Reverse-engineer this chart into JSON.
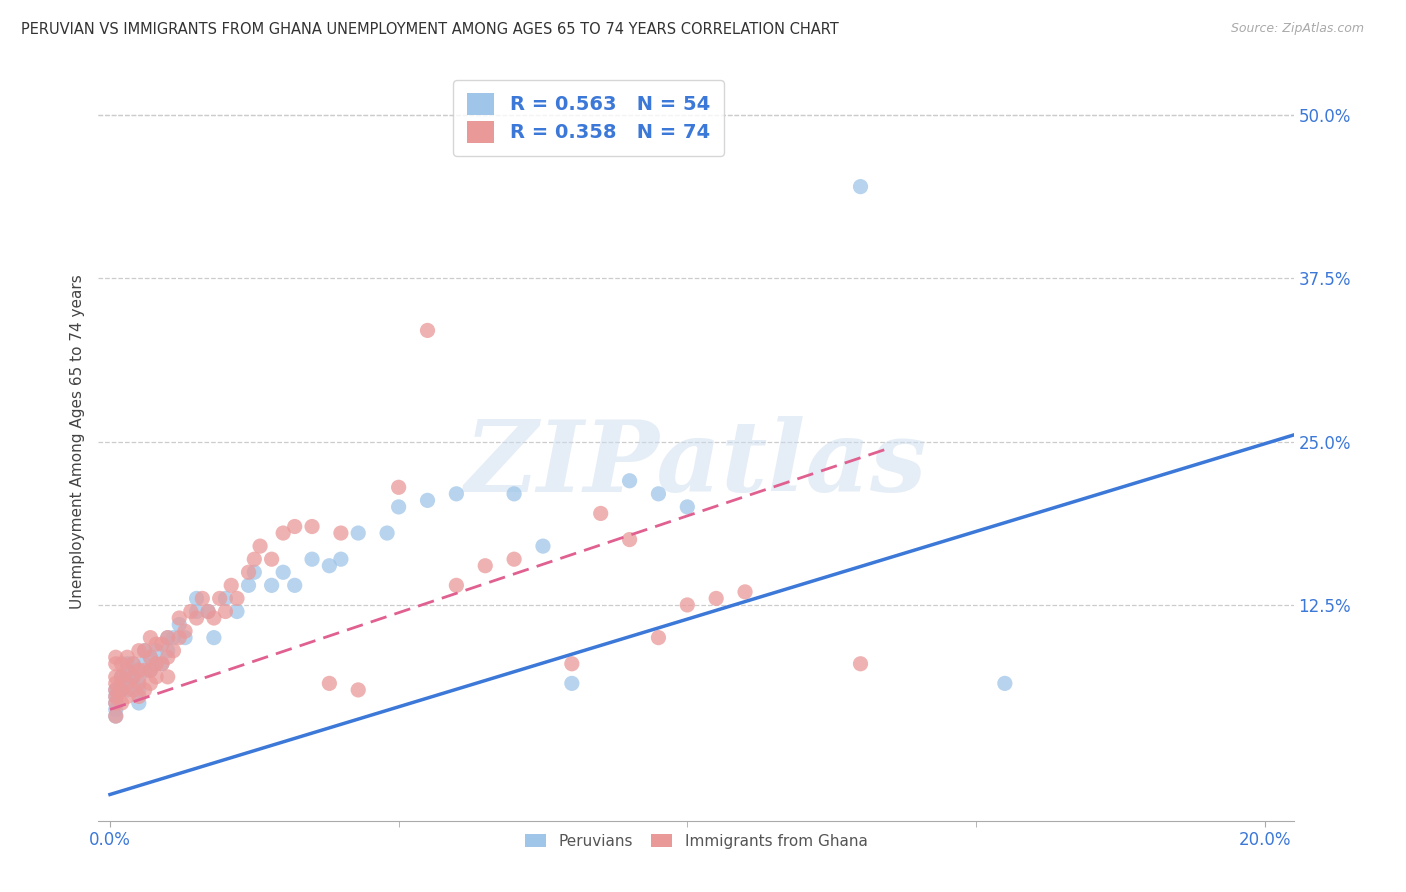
{
  "title": "PERUVIAN VS IMMIGRANTS FROM GHANA UNEMPLOYMENT AMONG AGES 65 TO 74 YEARS CORRELATION CHART",
  "source": "Source: ZipAtlas.com",
  "xlabel_ticks": [
    "0.0%",
    "20.0%"
  ],
  "xlabel_values": [
    0.0,
    0.2
  ],
  "ylabel": "Unemployment Among Ages 65 to 74 years",
  "ylabel_ticks": [
    "50.0%",
    "37.5%",
    "25.0%",
    "12.5%"
  ],
  "ylabel_values": [
    0.5,
    0.375,
    0.25,
    0.125
  ],
  "xlim": [
    -0.002,
    0.205
  ],
  "ylim": [
    -0.04,
    0.54
  ],
  "blue_color": "#9fc5e8",
  "pink_color": "#ea9999",
  "blue_line_color": "#3c78d8",
  "pink_line_color": "#e06090",
  "legend_label_blue": "Peruvians",
  "legend_label_pink": "Immigrants from Ghana",
  "watermark_text": "ZIPatlas",
  "blue_line_x": [
    0.0,
    0.205
  ],
  "blue_line_y": [
    -0.02,
    0.255
  ],
  "pink_line_x": [
    0.0,
    0.135
  ],
  "pink_line_y": [
    0.045,
    0.245
  ],
  "peru_x": [
    0.001,
    0.001,
    0.001,
    0.001,
    0.001,
    0.002,
    0.002,
    0.002,
    0.003,
    0.003,
    0.003,
    0.004,
    0.004,
    0.005,
    0.005,
    0.005,
    0.006,
    0.006,
    0.007,
    0.007,
    0.008,
    0.009,
    0.01,
    0.01,
    0.011,
    0.012,
    0.013,
    0.015,
    0.015,
    0.017,
    0.018,
    0.02,
    0.022,
    0.024,
    0.025,
    0.028,
    0.03,
    0.032,
    0.035,
    0.038,
    0.04,
    0.043,
    0.048,
    0.05,
    0.055,
    0.06,
    0.07,
    0.075,
    0.08,
    0.09,
    0.095,
    0.1,
    0.13,
    0.155
  ],
  "peru_y": [
    0.04,
    0.05,
    0.055,
    0.06,
    0.045,
    0.06,
    0.065,
    0.07,
    0.06,
    0.07,
    0.08,
    0.07,
    0.08,
    0.05,
    0.06,
    0.07,
    0.08,
    0.09,
    0.075,
    0.085,
    0.09,
    0.08,
    0.09,
    0.1,
    0.1,
    0.11,
    0.1,
    0.12,
    0.13,
    0.12,
    0.1,
    0.13,
    0.12,
    0.14,
    0.15,
    0.14,
    0.15,
    0.14,
    0.16,
    0.155,
    0.16,
    0.18,
    0.18,
    0.2,
    0.205,
    0.21,
    0.21,
    0.17,
    0.065,
    0.22,
    0.21,
    0.2,
    0.445,
    0.065
  ],
  "ghana_x": [
    0.001,
    0.001,
    0.001,
    0.001,
    0.001,
    0.001,
    0.001,
    0.001,
    0.002,
    0.002,
    0.002,
    0.002,
    0.003,
    0.003,
    0.003,
    0.003,
    0.004,
    0.004,
    0.004,
    0.005,
    0.005,
    0.005,
    0.005,
    0.006,
    0.006,
    0.006,
    0.007,
    0.007,
    0.007,
    0.007,
    0.008,
    0.008,
    0.008,
    0.009,
    0.009,
    0.01,
    0.01,
    0.01,
    0.011,
    0.012,
    0.012,
    0.013,
    0.014,
    0.015,
    0.016,
    0.017,
    0.018,
    0.019,
    0.02,
    0.021,
    0.022,
    0.024,
    0.025,
    0.026,
    0.028,
    0.03,
    0.032,
    0.035,
    0.038,
    0.04,
    0.043,
    0.05,
    0.055,
    0.06,
    0.065,
    0.07,
    0.08,
    0.085,
    0.09,
    0.095,
    0.1,
    0.105,
    0.11,
    0.13
  ],
  "ghana_y": [
    0.04,
    0.05,
    0.055,
    0.06,
    0.065,
    0.07,
    0.08,
    0.085,
    0.05,
    0.06,
    0.07,
    0.08,
    0.055,
    0.065,
    0.075,
    0.085,
    0.06,
    0.07,
    0.08,
    0.055,
    0.065,
    0.075,
    0.09,
    0.06,
    0.075,
    0.09,
    0.065,
    0.075,
    0.085,
    0.1,
    0.07,
    0.08,
    0.095,
    0.08,
    0.095,
    0.07,
    0.085,
    0.1,
    0.09,
    0.1,
    0.115,
    0.105,
    0.12,
    0.115,
    0.13,
    0.12,
    0.115,
    0.13,
    0.12,
    0.14,
    0.13,
    0.15,
    0.16,
    0.17,
    0.16,
    0.18,
    0.185,
    0.185,
    0.065,
    0.18,
    0.06,
    0.215,
    0.335,
    0.14,
    0.155,
    0.16,
    0.08,
    0.195,
    0.175,
    0.1,
    0.125,
    0.13,
    0.135,
    0.08
  ]
}
